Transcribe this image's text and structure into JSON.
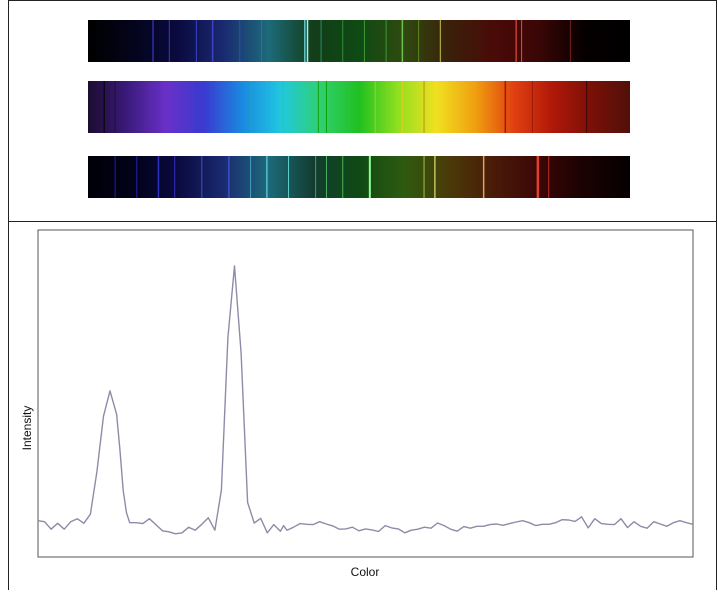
{
  "spectra": [
    {
      "type": "emission",
      "background": [
        "#000000",
        "#04041c",
        "#0a0a40",
        "#1a2a70",
        "#1d6a7a",
        "#123d18",
        "#0f4a14",
        "#2f4a10",
        "#3a200a",
        "#4a0a08",
        "#3a0606",
        "#050000",
        "#000000"
      ],
      "lines": [
        {
          "pos": 0.12,
          "color": "#3030a0",
          "w": 1.5
        },
        {
          "pos": 0.15,
          "color": "#3a3ab0",
          "w": 1
        },
        {
          "pos": 0.2,
          "color": "#3a40c0",
          "w": 1
        },
        {
          "pos": 0.23,
          "color": "#4040c8",
          "w": 1.5
        },
        {
          "pos": 0.28,
          "color": "#3050b0",
          "w": 1
        },
        {
          "pos": 0.32,
          "color": "#4060c0",
          "w": 1
        },
        {
          "pos": 0.4,
          "color": "#60c8d0",
          "w": 1.5
        },
        {
          "pos": 0.405,
          "color": "#a0f0f0",
          "w": 1.5
        },
        {
          "pos": 0.43,
          "color": "#2a8a6a",
          "w": 1
        },
        {
          "pos": 0.47,
          "color": "#2f8a30",
          "w": 1
        },
        {
          "pos": 0.51,
          "color": "#3a9a30",
          "w": 1
        },
        {
          "pos": 0.55,
          "color": "#3a9a30",
          "w": 1
        },
        {
          "pos": 0.58,
          "color": "#70c050",
          "w": 1.5
        },
        {
          "pos": 0.61,
          "color": "#5a8a20",
          "w": 1
        },
        {
          "pos": 0.65,
          "color": "#c8c050",
          "w": 1
        },
        {
          "pos": 0.79,
          "color": "#c04030",
          "w": 1.5
        },
        {
          "pos": 0.8,
          "color": "#e05040",
          "w": 1
        },
        {
          "pos": 0.89,
          "color": "#702020",
          "w": 1
        }
      ]
    },
    {
      "type": "continuous",
      "background": [
        "#1c0c30",
        "#3a1a7a",
        "#6a30c8",
        "#3a3ad0",
        "#1a8ae0",
        "#20c8e0",
        "#30d070",
        "#20c020",
        "#90e020",
        "#f0e020",
        "#f0a010",
        "#e04010",
        "#b01808",
        "#7a1008",
        "#501008"
      ],
      "lines": [
        {
          "pos": 0.03,
          "color": "#100818",
          "w": 1.5
        },
        {
          "pos": 0.05,
          "color": "#201040",
          "w": 1
        },
        {
          "pos": 0.13,
          "color": "#5a2ab8",
          "w": 1
        },
        {
          "pos": 0.2,
          "color": "#3a3ac8",
          "w": 1
        },
        {
          "pos": 0.3,
          "color": "#20a0d0",
          "w": 1
        },
        {
          "pos": 0.36,
          "color": "#30c0a0",
          "w": 1
        },
        {
          "pos": 0.425,
          "color": "#10a010",
          "w": 1
        },
        {
          "pos": 0.44,
          "color": "#10a010",
          "w": 1
        },
        {
          "pos": 0.53,
          "color": "#a0d020",
          "w": 1
        },
        {
          "pos": 0.58,
          "color": "#e0d020",
          "w": 1
        },
        {
          "pos": 0.62,
          "color": "#c09010",
          "w": 1
        },
        {
          "pos": 0.77,
          "color": "#a01808",
          "w": 1.5
        },
        {
          "pos": 0.82,
          "color": "#a01808",
          "w": 1
        },
        {
          "pos": 0.92,
          "color": "#3a0606",
          "w": 1
        }
      ]
    },
    {
      "type": "mixed",
      "background": [
        "#000008",
        "#02021a",
        "#0a0a40",
        "#1a2a70",
        "#1d6a7a",
        "#123d30",
        "#0f4a14",
        "#2f5a10",
        "#4a3a08",
        "#4a1a08",
        "#3a0606",
        "#1a0202",
        "#050000"
      ],
      "lines": [
        {
          "pos": 0.05,
          "color": "#2020a0",
          "w": 1
        },
        {
          "pos": 0.09,
          "color": "#2020b0",
          "w": 1
        },
        {
          "pos": 0.13,
          "color": "#3030c0",
          "w": 1.5
        },
        {
          "pos": 0.16,
          "color": "#3030c0",
          "w": 1
        },
        {
          "pos": 0.21,
          "color": "#4050c8",
          "w": 1
        },
        {
          "pos": 0.26,
          "color": "#4050c8",
          "w": 1.5
        },
        {
          "pos": 0.3,
          "color": "#40a0c0",
          "w": 1
        },
        {
          "pos": 0.33,
          "color": "#50c0d0",
          "w": 1.5
        },
        {
          "pos": 0.37,
          "color": "#60d0d0",
          "w": 1
        },
        {
          "pos": 0.42,
          "color": "#40a060",
          "w": 1
        },
        {
          "pos": 0.44,
          "color": "#50b060",
          "w": 1
        },
        {
          "pos": 0.47,
          "color": "#50b050",
          "w": 1
        },
        {
          "pos": 0.52,
          "color": "#90ff90",
          "w": 2
        },
        {
          "pos": 0.62,
          "color": "#a0c050",
          "w": 1
        },
        {
          "pos": 0.64,
          "color": "#c0c060",
          "w": 1.5
        },
        {
          "pos": 0.73,
          "color": "#e0a060",
          "w": 1.5
        },
        {
          "pos": 0.83,
          "color": "#e04030",
          "w": 2.5
        },
        {
          "pos": 0.85,
          "color": "#c03020",
          "w": 1
        }
      ]
    }
  ],
  "chart_data": {
    "type": "line",
    "title": "",
    "xlabel": "Color",
    "ylabel": "Intensity",
    "xlim": [
      0,
      1
    ],
    "ylim": [
      0,
      1
    ],
    "grid": false,
    "series": [
      {
        "color": "#8c8ca8",
        "x": [
          0.0,
          0.01,
          0.02,
          0.03,
          0.04,
          0.05,
          0.06,
          0.07,
          0.08,
          0.09,
          0.1,
          0.11,
          0.12,
          0.125,
          0.13,
          0.135,
          0.14,
          0.15,
          0.16,
          0.17,
          0.18,
          0.19,
          0.2,
          0.21,
          0.22,
          0.23,
          0.24,
          0.25,
          0.26,
          0.27,
          0.28,
          0.29,
          0.3,
          0.31,
          0.32,
          0.33,
          0.34,
          0.35,
          0.36,
          0.37,
          0.375,
          0.38,
          0.39,
          0.4,
          0.41,
          0.42,
          0.43,
          0.44,
          0.45,
          0.46,
          0.47,
          0.48,
          0.49,
          0.5,
          0.51,
          0.52,
          0.53,
          0.54,
          0.55,
          0.56,
          0.57,
          0.58,
          0.59,
          0.6,
          0.61,
          0.62,
          0.63,
          0.64,
          0.65,
          0.66,
          0.67,
          0.68,
          0.69,
          0.7,
          0.71,
          0.72,
          0.73,
          0.74,
          0.75,
          0.76,
          0.77,
          0.78,
          0.79,
          0.8,
          0.81,
          0.82,
          0.83,
          0.84,
          0.85,
          0.86,
          0.87,
          0.88,
          0.89,
          0.9,
          0.91,
          0.92,
          0.93,
          0.94,
          0.95,
          0.96,
          0.97,
          0.98,
          0.99,
          1.0
        ],
        "y": [
          0.111,
          0.108,
          0.085,
          0.103,
          0.085,
          0.108,
          0.117,
          0.103,
          0.131,
          0.261,
          0.431,
          0.508,
          0.437,
          0.329,
          0.204,
          0.136,
          0.105,
          0.105,
          0.102,
          0.117,
          0.099,
          0.08,
          0.077,
          0.071,
          0.074,
          0.091,
          0.082,
          0.1,
          0.12,
          0.082,
          0.205,
          0.671,
          0.89,
          0.624,
          0.167,
          0.104,
          0.118,
          0.074,
          0.099,
          0.079,
          0.096,
          0.082,
          0.091,
          0.102,
          0.1,
          0.099,
          0.108,
          0.101,
          0.095,
          0.085,
          0.086,
          0.091,
          0.08,
          0.086,
          0.083,
          0.078,
          0.096,
          0.089,
          0.086,
          0.074,
          0.082,
          0.085,
          0.091,
          0.088,
          0.104,
          0.096,
          0.085,
          0.079,
          0.093,
          0.088,
          0.094,
          0.094,
          0.099,
          0.101,
          0.097,
          0.102,
          0.107,
          0.111,
          0.105,
          0.096,
          0.1,
          0.1,
          0.105,
          0.114,
          0.113,
          0.109,
          0.123,
          0.089,
          0.117,
          0.102,
          0.1,
          0.099,
          0.117,
          0.09,
          0.108,
          0.094,
          0.088,
          0.108,
          0.101,
          0.094,
          0.105,
          0.111,
          0.105,
          0.1
        ]
      }
    ]
  }
}
